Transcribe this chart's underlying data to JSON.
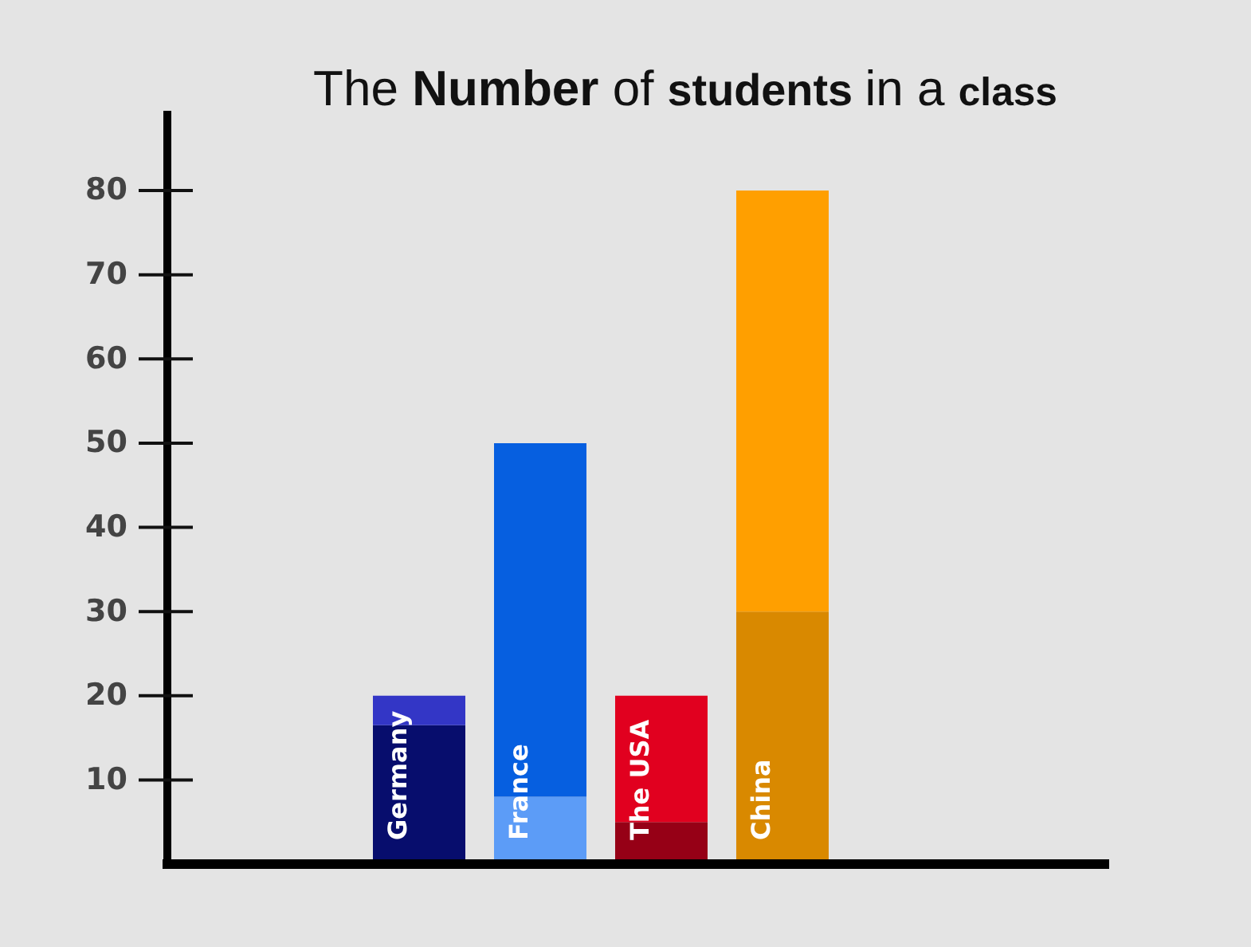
{
  "chart_data": {
    "type": "bar",
    "title": "The Number of students in a class",
    "categories": [
      "Germany",
      "France",
      "The USA",
      "China"
    ],
    "stacked": true,
    "series": [
      {
        "values": [
          16.5,
          8,
          5,
          30
        ],
        "colors": [
          "#070d6d",
          "#5c9cf7",
          "#960016",
          "#d98900"
        ]
      },
      {
        "values": [
          3.5,
          42,
          15,
          50
        ],
        "colors": [
          "#3336c6",
          "#065fe0",
          "#e1001f",
          "#ff9f00"
        ]
      }
    ],
    "ylim": [
      0,
      89
    ],
    "yticks": [
      10,
      20,
      30,
      40,
      50,
      60,
      70,
      80
    ]
  }
}
